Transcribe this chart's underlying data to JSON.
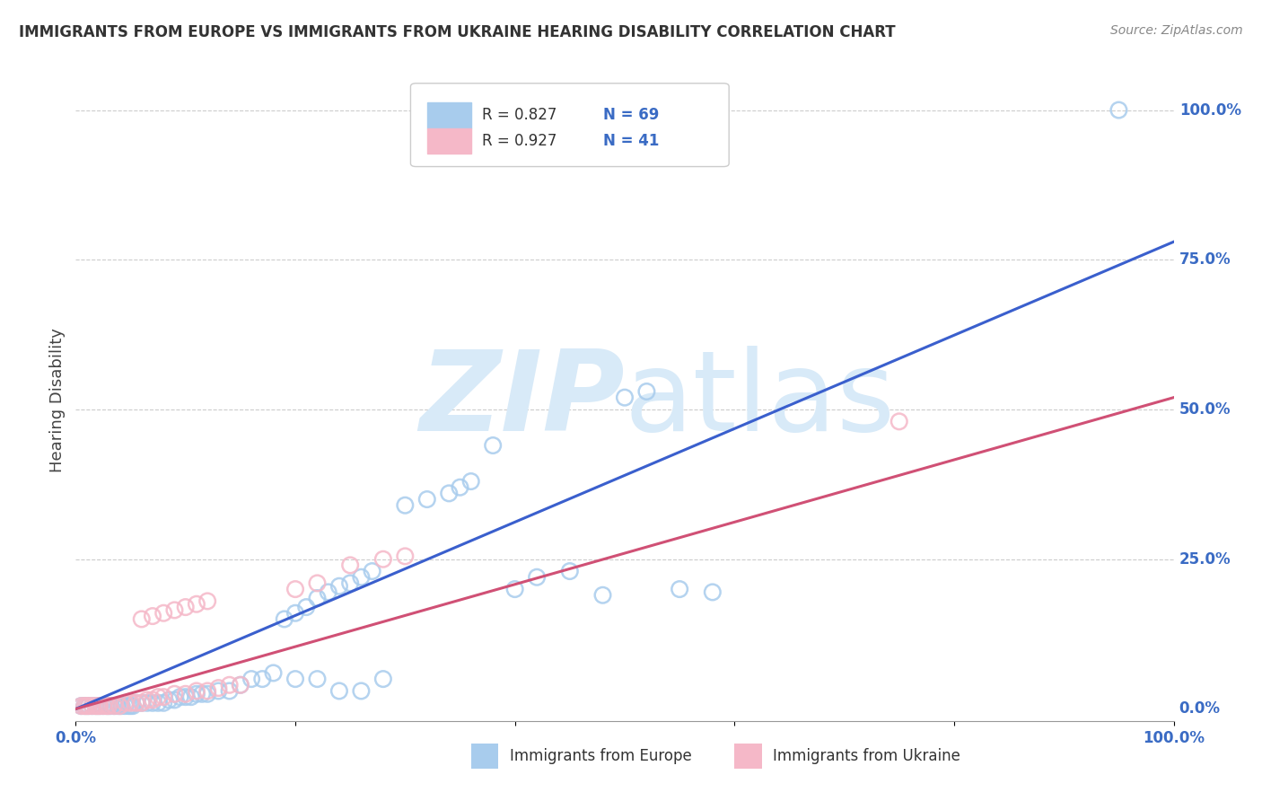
{
  "title": "IMMIGRANTS FROM EUROPE VS IMMIGRANTS FROM UKRAINE HEARING DISABILITY CORRELATION CHART",
  "source": "Source: ZipAtlas.com",
  "ylabel": "Hearing Disability",
  "ytick_labels": [
    "0.0%",
    "25.0%",
    "50.0%",
    "75.0%",
    "100.0%"
  ],
  "ytick_values": [
    0.0,
    0.25,
    0.5,
    0.75,
    1.0
  ],
  "xlim": [
    0,
    1.0
  ],
  "ylim": [
    -0.02,
    1.05
  ],
  "legend_europe_R": "0.827",
  "legend_europe_N": "69",
  "legend_ukraine_R": "0.927",
  "legend_ukraine_N": "41",
  "europe_color": "#A8CCED",
  "ukraine_color": "#F5B8C8",
  "europe_line_color": "#3A5FCD",
  "ukraine_line_color": "#D05075",
  "watermark_color": "#D8EAF8",
  "background_color": "#ffffff",
  "europe_scatter_x": [
    0.005,
    0.008,
    0.01,
    0.012,
    0.015,
    0.018,
    0.02,
    0.022,
    0.025,
    0.028,
    0.03,
    0.032,
    0.035,
    0.038,
    0.04,
    0.042,
    0.045,
    0.048,
    0.05,
    0.052,
    0.055,
    0.06,
    0.065,
    0.07,
    0.075,
    0.08,
    0.085,
    0.09,
    0.095,
    0.1,
    0.105,
    0.11,
    0.115,
    0.12,
    0.13,
    0.14,
    0.15,
    0.16,
    0.17,
    0.18,
    0.19,
    0.2,
    0.21,
    0.22,
    0.23,
    0.24,
    0.25,
    0.26,
    0.27,
    0.28,
    0.2,
    0.22,
    0.24,
    0.26,
    0.3,
    0.32,
    0.34,
    0.35,
    0.36,
    0.38,
    0.4,
    0.42,
    0.45,
    0.48,
    0.5,
    0.52,
    0.55,
    0.58,
    0.95
  ],
  "europe_scatter_y": [
    0.005,
    0.005,
    0.005,
    0.005,
    0.005,
    0.005,
    0.005,
    0.005,
    0.005,
    0.005,
    0.005,
    0.005,
    0.005,
    0.005,
    0.005,
    0.005,
    0.005,
    0.005,
    0.005,
    0.005,
    0.01,
    0.01,
    0.01,
    0.01,
    0.01,
    0.01,
    0.015,
    0.015,
    0.02,
    0.02,
    0.02,
    0.025,
    0.025,
    0.025,
    0.03,
    0.03,
    0.04,
    0.05,
    0.05,
    0.06,
    0.15,
    0.16,
    0.17,
    0.185,
    0.195,
    0.205,
    0.21,
    0.22,
    0.23,
    0.05,
    0.05,
    0.05,
    0.03,
    0.03,
    0.34,
    0.35,
    0.36,
    0.37,
    0.38,
    0.44,
    0.2,
    0.22,
    0.23,
    0.19,
    0.52,
    0.53,
    0.2,
    0.195,
    1.0
  ],
  "ukraine_scatter_x": [
    0.005,
    0.008,
    0.01,
    0.012,
    0.015,
    0.018,
    0.02,
    0.022,
    0.025,
    0.028,
    0.03,
    0.035,
    0.04,
    0.045,
    0.05,
    0.055,
    0.06,
    0.065,
    0.07,
    0.075,
    0.08,
    0.09,
    0.1,
    0.11,
    0.12,
    0.13,
    0.14,
    0.15,
    0.06,
    0.07,
    0.08,
    0.09,
    0.1,
    0.11,
    0.12,
    0.2,
    0.22,
    0.25,
    0.28,
    0.3,
    0.75
  ],
  "ukraine_scatter_y": [
    0.005,
    0.005,
    0.005,
    0.005,
    0.005,
    0.005,
    0.005,
    0.005,
    0.005,
    0.005,
    0.005,
    0.005,
    0.005,
    0.01,
    0.01,
    0.01,
    0.01,
    0.015,
    0.015,
    0.02,
    0.02,
    0.025,
    0.025,
    0.03,
    0.03,
    0.035,
    0.04,
    0.04,
    0.15,
    0.155,
    0.16,
    0.165,
    0.17,
    0.175,
    0.18,
    0.2,
    0.21,
    0.24,
    0.25,
    0.255,
    0.48
  ],
  "europe_trend_x": [
    0.0,
    1.0
  ],
  "europe_trend_y": [
    0.0,
    0.78
  ],
  "ukraine_trend_x": [
    0.0,
    1.0
  ],
  "ukraine_trend_y": [
    0.0,
    0.52
  ]
}
